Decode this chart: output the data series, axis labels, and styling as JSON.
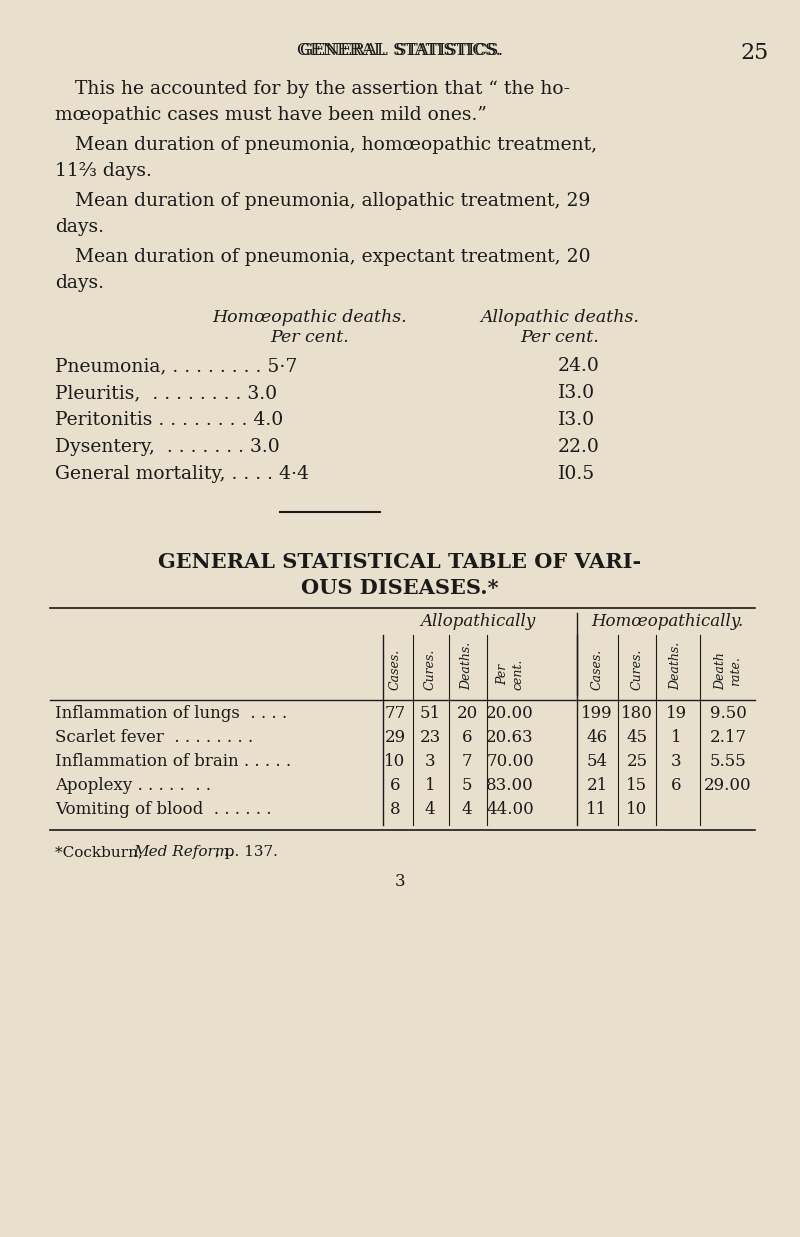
{
  "bg_color": "#e8e0cc",
  "page_header": "GENERAL STATISTICS.",
  "page_number": "25",
  "intro_lines": [
    "This he accounted for by the assertion that “ the ho-",
    "mœopathic cases must have been mild ones.”",
    "    Mean duration of pneumonia, homœopathic treatment,",
    "11⅔ days.",
    "    Mean duration of pneumonia, allopathic treatment, 29",
    "days.",
    "    Mean duration of pneumonia, expectant treatment, 20",
    "days."
  ],
  "col_header_left": "Homœopathic deaths.",
  "col_header_left_sub": "Per cent.",
  "col_header_right": "Allopathic deaths.",
  "col_header_right_sub": "Per cent.",
  "disease_rows": [
    {
      "label": "Pneumonia, . . . . . . . . 5·7",
      "right_val": "24.0"
    },
    {
      "label": "Pleuritis,  . . . . . . . . 3.0",
      "right_val": "I3.0"
    },
    {
      "label": "Peritonitis . . . . . . . . 4.0",
      "right_val": "I3.0"
    },
    {
      "label": "Dysentery,  . . . . . . . 3.0",
      "right_val": "22.0"
    },
    {
      "label": "General mortality, . . . . 4·4",
      "right_val": "I0.5"
    }
  ],
  "section_title_line1": "GENERAL STATISTICAL TABLE OF VARI-",
  "section_title_line2": "OUS DISEASES.*",
  "table_col_group_left": "Allopathically",
  "table_col_group_right": "Homœopathically.",
  "table_sub_cols": [
    "Cases.",
    "Cures.",
    "Deaths.",
    "Per\ncent.",
    "Cases.",
    "Cures.",
    "Deaths.",
    "Death\nrate."
  ],
  "table_rows": [
    {
      "label": "Inflammation of lungs  . . . .",
      "vals": [
        "77",
        "51",
        "20",
        "20.00",
        "199",
        "180",
        "19",
        "9.50"
      ]
    },
    {
      "label": "Scarlet fever  . . . . . . . .",
      "vals": [
        "29",
        "23",
        "6",
        "20.63",
        "46",
        "45",
        "1",
        "2.17"
      ]
    },
    {
      "label": "Inflammation of brain . . . . .",
      "vals": [
        "10",
        "3",
        "7",
        "70.00",
        "54",
        "25",
        "3",
        "5.55"
      ]
    },
    {
      "label": "Apoplexy . . . . .  . .",
      "vals": [
        "6",
        "1",
        "5",
        "83.00",
        "21",
        "15",
        "6",
        "29.00"
      ]
    },
    {
      "label": "Vomiting of blood  . . . . . .",
      "vals": [
        "8",
        "4",
        "4",
        "44.00",
        "11",
        "10",
        "",
        ""
      ]
    }
  ],
  "footnote": "*Cockburn, Med Reform., p. 137.",
  "footnote_italic": "Med Reform.",
  "page_num_bottom": "3"
}
